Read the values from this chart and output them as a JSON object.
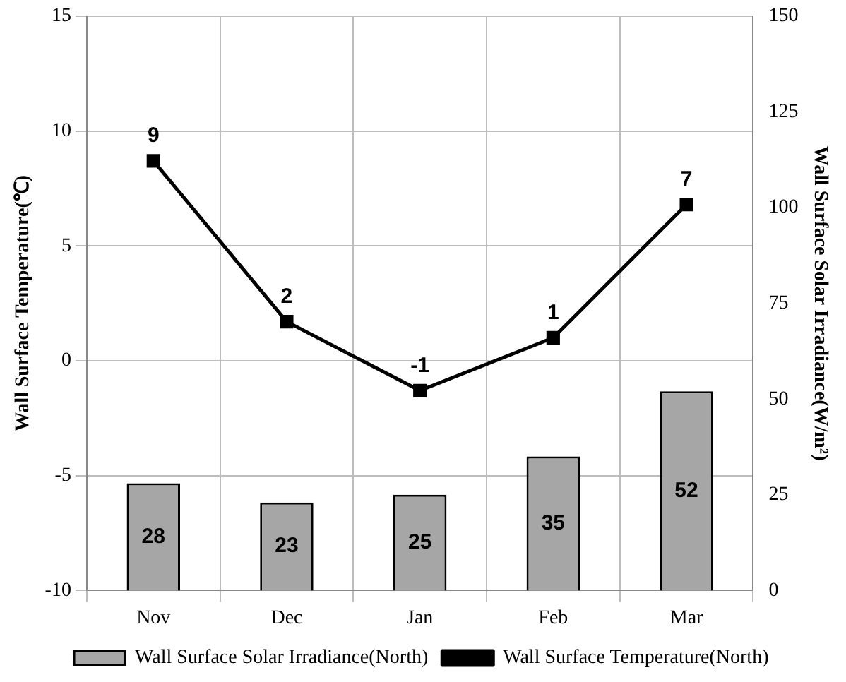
{
  "chart_data": {
    "type": "bar",
    "ylabel": "Wall Surface Temperature(℃)",
    "y2label": "Wall Surface Solar Irradiance(W/m²)",
    "categories": [
      "Nov",
      "Dec",
      "Jan",
      "Feb",
      "Mar"
    ],
    "series": [
      {
        "name": "Wall Surface Solar Irradiance(North)",
        "axis": "y2",
        "color": "#a6a6a6",
        "values": [
          28,
          23,
          25,
          35,
          52
        ],
        "value_labels": [
          "28",
          "23",
          "25",
          "35",
          "52"
        ]
      },
      {
        "name": "Wall Surface Temperature(North)",
        "type": "line",
        "axis": "y",
        "color": "#000000",
        "marker": "square",
        "values": [
          8.7,
          1.7,
          -1.3,
          1.0,
          6.8
        ],
        "value_labels": [
          "9",
          "2",
          "-1",
          "1",
          "7"
        ]
      }
    ],
    "ylim": [
      -10,
      15
    ],
    "yticks": [
      -10,
      -5,
      0,
      5,
      10,
      15
    ],
    "y2lim": [
      0,
      150
    ],
    "y2ticks": [
      0,
      25,
      50,
      75,
      100,
      125,
      150
    ],
    "grid": true,
    "legend": "bottom"
  }
}
